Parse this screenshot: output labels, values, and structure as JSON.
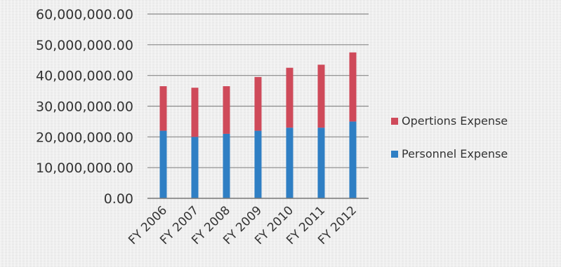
{
  "chart_data": {
    "type": "bar",
    "stacked": true,
    "categories": [
      "FY 2006",
      "FY 2007",
      "FY 2008",
      "FY 2009",
      "FY 2010",
      "FY 2011",
      "FY 2012"
    ],
    "series": [
      {
        "name": "Personnel Expense",
        "color": "#2f7fc4",
        "values": [
          22000000,
          20000000,
          21000000,
          22000000,
          23000000,
          23000000,
          25000000
        ]
      },
      {
        "name": "Opertions Expense",
        "color": "#cf4a5a",
        "values": [
          14500000,
          16000000,
          15500000,
          17500000,
          19500000,
          20500000,
          22500000
        ]
      }
    ],
    "yticks": [
      "0.00",
      "10,000,000.00",
      "20,000,000.00",
      "30,000,000.00",
      "40,000,000.00",
      "50,000,000.00",
      "60,000,000.00"
    ],
    "ylim": [
      0,
      60000000
    ],
    "grid": true,
    "legend_position": "right"
  }
}
